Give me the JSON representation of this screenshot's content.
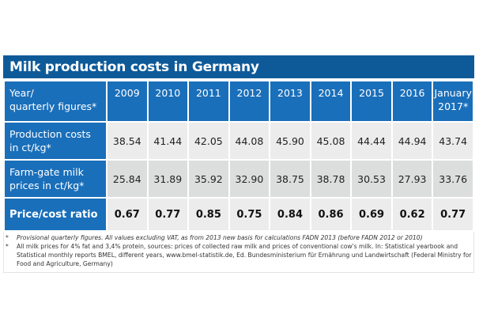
{
  "chart_data": {
    "type": "table",
    "title": "Milk production costs in Germany",
    "corner_header": [
      "Year/",
      "quarterly figures*"
    ],
    "columns": [
      "2009",
      "2010",
      "2011",
      "2012",
      "2013",
      "2014",
      "2015",
      "2016",
      "January 2017*"
    ],
    "column_lines": [
      [
        "2009"
      ],
      [
        "2010"
      ],
      [
        "2011"
      ],
      [
        "2012"
      ],
      [
        "2013"
      ],
      [
        "2014"
      ],
      [
        "2015"
      ],
      [
        "2016"
      ],
      [
        "January",
        "2017*"
      ]
    ],
    "rows": [
      {
        "label": [
          "Production costs",
          "in ct/kg*"
        ],
        "values": [
          38.54,
          41.44,
          42.05,
          44.08,
          45.9,
          45.08,
          44.44,
          44.94,
          43.74
        ]
      },
      {
        "label": [
          "Farm-gate milk",
          "prices in ct/kg*"
        ],
        "values": [
          25.84,
          31.89,
          35.92,
          32.9,
          38.75,
          38.78,
          30.53,
          27.93,
          33.76
        ]
      },
      {
        "label": [
          "Price/cost ratio"
        ],
        "values": [
          0.67,
          0.77,
          0.85,
          0.75,
          0.84,
          0.86,
          0.69,
          0.62,
          0.77
        ]
      }
    ],
    "colors": {
      "title_bg": "#0e5a99",
      "header_bg": "#1a6fba",
      "row_light": "#ececec",
      "row_dark": "#dcdedd"
    }
  },
  "footnotes": [
    {
      "marker": "*",
      "text": "Provisional quarterly figures. All values excluding VAT, as from 2013 new basis for calculations FADN 2013 (before FADN 2012 or 2010)"
    },
    {
      "marker": "*",
      "text": "All milk prices for 4% fat and 3,4% protein, sources: prices of collected raw milk and prices of conventional cow's milk. In: Statistical yearbook and Statistical monthly reports BMEL, different years, www.bmel-statistik.de, Ed. Bundesministerium für Ernährung und Landwirtschaft (Federal Ministry for Food and Agriculture, Germany)"
    }
  ]
}
